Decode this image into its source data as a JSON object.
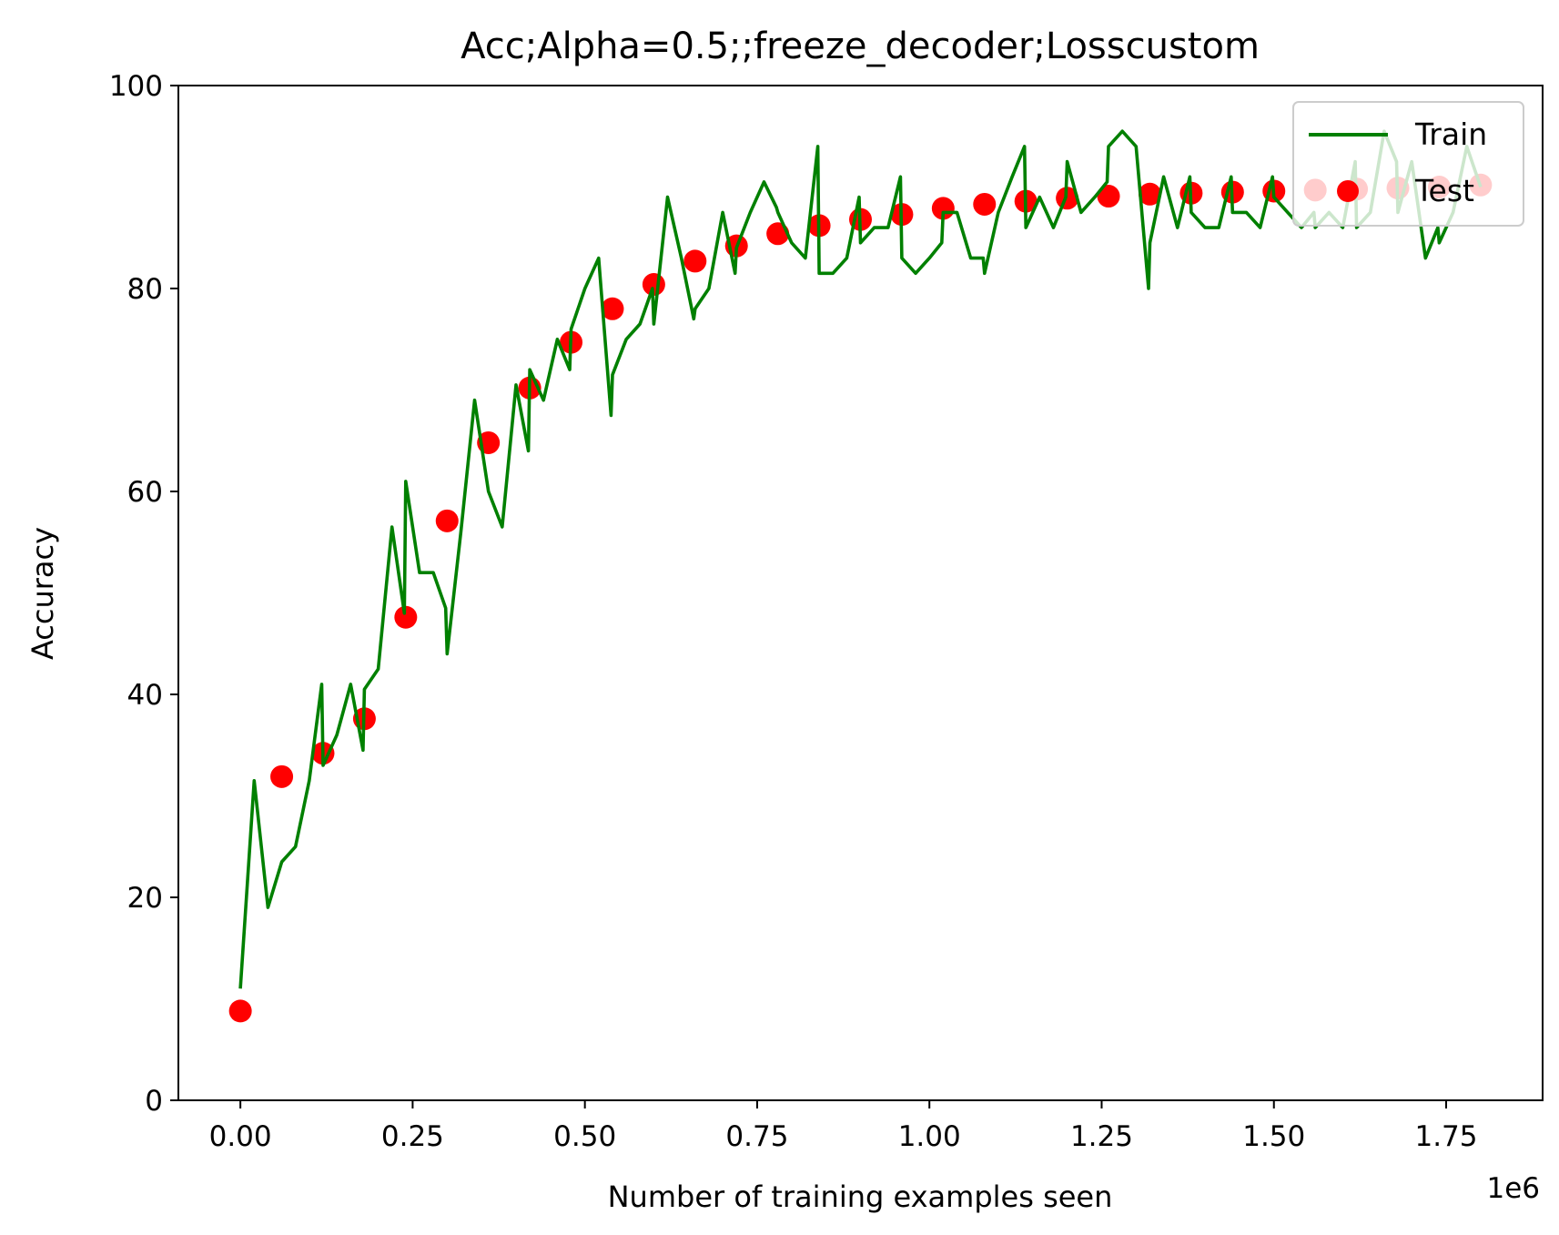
{
  "chart_data": {
    "type": "line",
    "title": "Acc;Alpha=0.5;;freeze_decoder;Losscustom",
    "xlabel": "Number of training examples seen",
    "ylabel": "Accuracy",
    "x_offset_label": "1e6",
    "xlim": [
      -0.09,
      1.89
    ],
    "ylim": [
      0,
      100
    ],
    "xticks": [
      0.0,
      0.25,
      0.5,
      0.75,
      1.0,
      1.25,
      1.5,
      1.75
    ],
    "xtick_labels": [
      "0.00",
      "0.25",
      "0.50",
      "0.75",
      "1.00",
      "1.25",
      "1.50",
      "1.75"
    ],
    "yticks": [
      0,
      20,
      40,
      60,
      80,
      100
    ],
    "ytick_labels": [
      "0",
      "20",
      "40",
      "60",
      "80",
      "100"
    ],
    "grid": false,
    "legend_position": "top-right",
    "series": [
      {
        "name": "Train",
        "style": "line",
        "color": "#008000",
        "x": [
          0.0,
          0.02,
          0.04,
          0.06,
          0.08,
          0.1,
          0.118,
          0.12,
          0.14,
          0.16,
          0.178,
          0.18,
          0.2,
          0.22,
          0.238,
          0.24,
          0.26,
          0.28,
          0.298,
          0.3,
          0.32,
          0.34,
          0.36,
          0.38,
          0.4,
          0.418,
          0.42,
          0.44,
          0.46,
          0.478,
          0.48,
          0.5,
          0.52,
          0.538,
          0.54,
          0.56,
          0.58,
          0.598,
          0.6,
          0.62,
          0.64,
          0.658,
          0.66,
          0.68,
          0.7,
          0.718,
          0.72,
          0.74,
          0.76,
          0.778,
          0.78,
          0.8,
          0.82,
          0.838,
          0.84,
          0.86,
          0.88,
          0.898,
          0.9,
          0.92,
          0.94,
          0.958,
          0.96,
          0.98,
          1.0,
          1.018,
          1.02,
          1.04,
          1.06,
          1.078,
          1.08,
          1.1,
          1.12,
          1.138,
          1.14,
          1.16,
          1.18,
          1.198,
          1.2,
          1.22,
          1.24,
          1.258,
          1.26,
          1.28,
          1.3,
          1.318,
          1.32,
          1.34,
          1.36,
          1.378,
          1.38,
          1.4,
          1.42,
          1.438,
          1.44,
          1.46,
          1.48,
          1.498,
          1.5,
          1.52,
          1.54,
          1.558,
          1.56,
          1.58,
          1.6,
          1.618,
          1.62,
          1.64,
          1.66,
          1.678,
          1.68,
          1.7,
          1.72,
          1.738,
          1.74,
          1.76,
          1.78,
          1.8
        ],
        "y": [
          11,
          31.5,
          19,
          23.5,
          25,
          31.5,
          41,
          33,
          36,
          41,
          34.5,
          40.5,
          42.5,
          56.5,
          48,
          61,
          52,
          52,
          48.5,
          44,
          56,
          69,
          60,
          56.5,
          70.5,
          64,
          72,
          69,
          75,
          72,
          76,
          80,
          83,
          67.5,
          71.5,
          75,
          76.5,
          80,
          76.5,
          89,
          83,
          77,
          78,
          80,
          87.5,
          81.5,
          84,
          87.5,
          90.5,
          88,
          87.5,
          84.5,
          83,
          94,
          81.5,
          81.5,
          83,
          89,
          84.5,
          86,
          86,
          91,
          83,
          81.5,
          83,
          84.5,
          87.5,
          87.5,
          83,
          83,
          81.5,
          87.5,
          91,
          94,
          86,
          89,
          86,
          89,
          92.5,
          87.5,
          89,
          90.5,
          94,
          95.5,
          94,
          80,
          84.5,
          91,
          86,
          91,
          87.5,
          86,
          86,
          91,
          87.5,
          87.5,
          86,
          91,
          89,
          87.5,
          86,
          87.5,
          86,
          87.5,
          86,
          92.5,
          86,
          87.5,
          95.5,
          92.5,
          87.5,
          92.5,
          83,
          86,
          84.5,
          87.5,
          94,
          90
        ]
      },
      {
        "name": "Test",
        "style": "marker",
        "color": "#ff0000",
        "x": [
          0.0,
          0.06,
          0.12,
          0.18,
          0.24,
          0.3,
          0.36,
          0.42,
          0.48,
          0.54,
          0.6,
          0.66,
          0.72,
          0.78,
          0.84,
          0.9,
          0.96,
          1.02,
          1.08,
          1.14,
          1.2,
          1.26,
          1.32,
          1.38,
          1.44,
          1.5,
          1.56,
          1.62,
          1.68,
          1.74,
          1.8
        ],
        "y": [
          8.8,
          31.9,
          34.2,
          37.6,
          47.6,
          57.1,
          64.8,
          70.2,
          74.7,
          78.0,
          80.4,
          82.7,
          84.2,
          85.4,
          86.2,
          86.8,
          87.3,
          87.9,
          88.3,
          88.6,
          88.9,
          89.1,
          89.3,
          89.4,
          89.5,
          89.6,
          89.7,
          89.8,
          89.9,
          90.0,
          90.2
        ]
      }
    ]
  }
}
